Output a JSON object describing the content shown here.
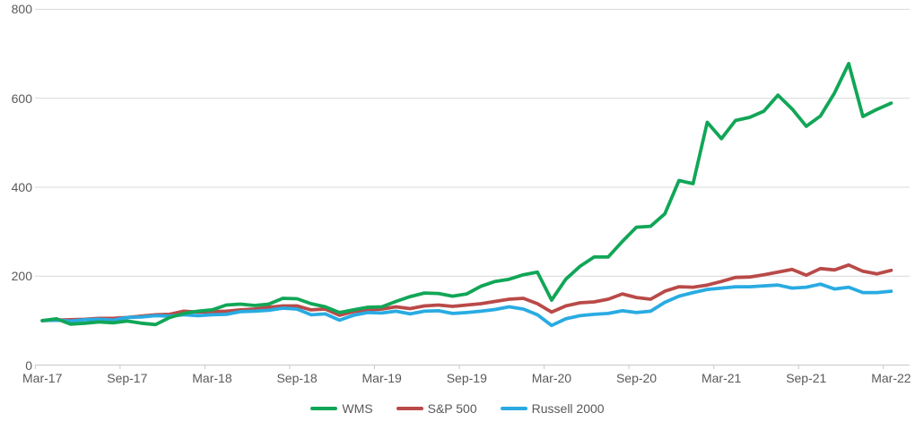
{
  "chart_data": {
    "type": "line",
    "title": "",
    "xlabel": "",
    "ylabel": "",
    "ylim": [
      0,
      800
    ],
    "yticks": [
      0,
      200,
      400,
      600,
      800
    ],
    "grid": "horizontal",
    "legend_position": "bottom",
    "x_tick_labels": [
      "Mar-17",
      "Sep-17",
      "Mar-18",
      "Sep-18",
      "Mar-19",
      "Sep-19",
      "Mar-20",
      "Sep-20",
      "Mar-21",
      "Sep-21",
      "Mar-22"
    ],
    "x_tick_label_every_n_points": 6,
    "months": [
      "Mar-17",
      "Apr-17",
      "May-17",
      "Jun-17",
      "Jul-17",
      "Aug-17",
      "Sep-17",
      "Oct-17",
      "Nov-17",
      "Dec-17",
      "Jan-18",
      "Feb-18",
      "Mar-18",
      "Apr-18",
      "May-18",
      "Jun-18",
      "Jul-18",
      "Aug-18",
      "Sep-18",
      "Oct-18",
      "Nov-18",
      "Dec-18",
      "Jan-19",
      "Feb-19",
      "Mar-19",
      "Apr-19",
      "May-19",
      "Jun-19",
      "Jul-19",
      "Aug-19",
      "Sep-19",
      "Oct-19",
      "Nov-19",
      "Dec-19",
      "Jan-20",
      "Feb-20",
      "Mar-20",
      "Apr-20",
      "May-20",
      "Jun-20",
      "Jul-20",
      "Aug-20",
      "Sep-20",
      "Oct-20",
      "Nov-20",
      "Dec-20",
      "Jan-21",
      "Feb-21",
      "Mar-21",
      "Apr-21",
      "May-21",
      "Jun-21",
      "Jul-21",
      "Aug-21",
      "Sep-21",
      "Oct-21",
      "Nov-21",
      "Dec-21",
      "Jan-22",
      "Feb-22",
      "Mar-22"
    ],
    "series": [
      {
        "name": "WMS",
        "color": "#11A657",
        "values": [
          100,
          104,
          92,
          94,
          97,
          95,
          99,
          94,
          91,
          107,
          116,
          121,
          124,
          135,
          137,
          134,
          137,
          150,
          149,
          138,
          131,
          118,
          124,
          130,
          131,
          143,
          154,
          162,
          161,
          155,
          160,
          177,
          188,
          193,
          203,
          209,
          146,
          193,
          222,
          243,
          243,
          278,
          310,
          312,
          340,
          415,
          408,
          546,
          509,
          550,
          557,
          571,
          607,
          576,
          537,
          560,
          612,
          678,
          559,
          575,
          589
        ]
      },
      {
        "name": "S&P 500",
        "color": "#B94A48",
        "values": [
          100,
          101,
          102,
          103,
          105,
          105,
          107,
          110,
          113,
          114,
          121,
          119,
          120,
          121,
          124,
          126,
          130,
          133,
          133,
          124,
          126,
          112,
          120,
          124,
          126,
          131,
          127,
          133,
          135,
          132,
          135,
          138,
          143,
          148,
          150,
          138,
          119,
          133,
          140,
          142,
          148,
          160,
          152,
          148,
          166,
          176,
          175,
          180,
          188,
          197,
          198,
          203,
          209,
          215,
          202,
          217,
          214,
          225,
          211,
          205,
          213
        ]
      },
      {
        "name": "Russell 2000",
        "color": "#29ABE2",
        "values": [
          100,
          101,
          99,
          102,
          103,
          101,
          107,
          108,
          111,
          110,
          113,
          111,
          113,
          114,
          120,
          121,
          123,
          128,
          126,
          113,
          115,
          101,
          112,
          118,
          117,
          121,
          115,
          121,
          122,
          116,
          118,
          121,
          125,
          131,
          126,
          113,
          89,
          104,
          111,
          114,
          116,
          122,
          118,
          121,
          141,
          155,
          163,
          170,
          173,
          176,
          176,
          178,
          180,
          173,
          175,
          182,
          171,
          175,
          163,
          163,
          166
        ]
      }
    ],
    "colors": {
      "gridline": "#D9D9D9",
      "axis_line": "#C9C9C9",
      "tick_mark": "#C9C9C9",
      "axis_text": "#595959",
      "background": "#FFFFFF"
    }
  }
}
